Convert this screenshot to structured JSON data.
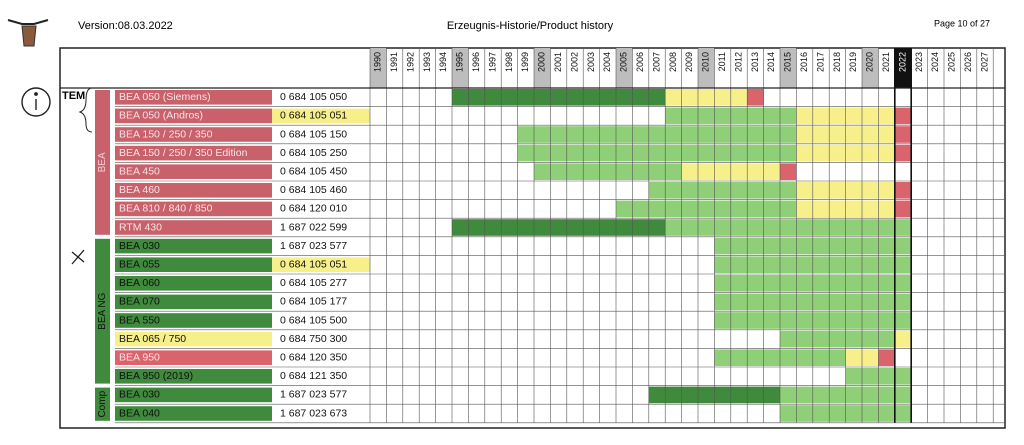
{
  "header": {
    "version": "Version:08.03.2022",
    "title": "Erzeugnis-Historie/Product history",
    "page": "Page 10 of 27"
  },
  "annotation": {
    "tem": "TEM"
  },
  "years": [
    1990,
    1991,
    1992,
    1993,
    1994,
    1995,
    1996,
    1997,
    1998,
    1999,
    2000,
    2001,
    2002,
    2003,
    2004,
    2005,
    2006,
    2007,
    2008,
    2009,
    2010,
    2011,
    2012,
    2013,
    2014,
    2015,
    2016,
    2017,
    2018,
    2019,
    2020,
    2021,
    2022,
    2023,
    2024,
    2025,
    2026,
    2027
  ],
  "emphasized_years": [
    1990,
    1995,
    2000,
    2005,
    2010,
    2015,
    2020
  ],
  "current_year": 2022,
  "status_colors": {
    "dark": "#3f8a3c",
    "green": "#8fcf78",
    "yellow": "#f7ef8a",
    "red": "#d9646c"
  },
  "groups": [
    {
      "name": "BEA",
      "color": "#c9616a",
      "rows": [
        {
          "label": "BEA 050 (Siemens)",
          "label_color": "#c9616a",
          "number": "0 684 105 050",
          "number_highlight": false,
          "segments": [
            {
              "from": 1995,
              "to": 2007,
              "status": "dark"
            },
            {
              "from": 2008,
              "to": 2012,
              "status": "yellow"
            },
            {
              "from": 2013,
              "to": 2013,
              "status": "red"
            }
          ]
        },
        {
          "label": "BEA 050 (Andros)",
          "label_color": "#c9616a",
          "number": "0 684 105 051",
          "number_highlight": true,
          "segments": [
            {
              "from": 2008,
              "to": 2015,
              "status": "green"
            },
            {
              "from": 2016,
              "to": 2021,
              "status": "yellow"
            },
            {
              "from": 2022,
              "to": 2022,
              "status": "red"
            }
          ]
        },
        {
          "label": "BEA 150 / 250 / 350",
          "label_color": "#c9616a",
          "number": "0 684 105 150",
          "number_highlight": false,
          "segments": [
            {
              "from": 1999,
              "to": 2015,
              "status": "green"
            },
            {
              "from": 2016,
              "to": 2021,
              "status": "yellow"
            },
            {
              "from": 2022,
              "to": 2022,
              "status": "red"
            }
          ]
        },
        {
          "label": "BEA 150 / 250 / 350 Edition",
          "label_color": "#c9616a",
          "number": "0 684 105 250",
          "number_highlight": false,
          "segments": [
            {
              "from": 1999,
              "to": 2015,
              "status": "green"
            },
            {
              "from": 2016,
              "to": 2021,
              "status": "yellow"
            },
            {
              "from": 2022,
              "to": 2022,
              "status": "red"
            }
          ]
        },
        {
          "label": "BEA 450",
          "label_color": "#c9616a",
          "number": "0 684 105 450",
          "number_highlight": false,
          "segments": [
            {
              "from": 2000,
              "to": 2008,
              "status": "green"
            },
            {
              "from": 2009,
              "to": 2014,
              "status": "yellow"
            },
            {
              "from": 2015,
              "to": 2015,
              "status": "red"
            }
          ]
        },
        {
          "label": "BEA 460",
          "label_color": "#c9616a",
          "number": "0 684 105 460",
          "number_highlight": false,
          "segments": [
            {
              "from": 2007,
              "to": 2015,
              "status": "green"
            },
            {
              "from": 2016,
              "to": 2021,
              "status": "yellow"
            },
            {
              "from": 2022,
              "to": 2022,
              "status": "red"
            }
          ]
        },
        {
          "label": "BEA 810 / 840 / 850",
          "label_color": "#c9616a",
          "number": "0 684 120 010",
          "number_highlight": false,
          "segments": [
            {
              "from": 2005,
              "to": 2015,
              "status": "green"
            },
            {
              "from": 2016,
              "to": 2021,
              "status": "yellow"
            },
            {
              "from": 2022,
              "to": 2022,
              "status": "red"
            }
          ]
        },
        {
          "label": "RTM 430",
          "label_color": "#c9616a",
          "number": "1 687 022 599",
          "number_highlight": false,
          "segments": [
            {
              "from": 1995,
              "to": 2007,
              "status": "dark"
            },
            {
              "from": 2008,
              "to": 2022,
              "status": "green"
            }
          ]
        }
      ]
    },
    {
      "name": "BEA NG",
      "color": "#3f8a3c",
      "rows": [
        {
          "label": "BEA 030",
          "label_color": "#3f8a3c",
          "number": "1 687 023 577",
          "number_highlight": false,
          "segments": [
            {
              "from": 2011,
              "to": 2022,
              "status": "green"
            }
          ]
        },
        {
          "label": "BEA 055",
          "label_color": "#3f8a3c",
          "number": "0 684 105 051",
          "number_highlight": true,
          "segments": [
            {
              "from": 2011,
              "to": 2022,
              "status": "green"
            }
          ]
        },
        {
          "label": "BEA 060",
          "label_color": "#3f8a3c",
          "number": "0 684 105 277",
          "number_highlight": false,
          "segments": [
            {
              "from": 2011,
              "to": 2022,
              "status": "green"
            }
          ]
        },
        {
          "label": "BEA 070",
          "label_color": "#3f8a3c",
          "number": "0 684 105 177",
          "number_highlight": false,
          "segments": [
            {
              "from": 2011,
              "to": 2022,
              "status": "green"
            }
          ]
        },
        {
          "label": "BEA 550",
          "label_color": "#3f8a3c",
          "number": "0 684 105 500",
          "number_highlight": false,
          "segments": [
            {
              "from": 2011,
              "to": 2022,
              "status": "green"
            }
          ]
        },
        {
          "label": "BEA 065 / 750",
          "label_color": "#f7ef8a",
          "number": "0 684 750 300",
          "number_highlight": false,
          "segments": [
            {
              "from": 2015,
              "to": 2021,
              "status": "green"
            },
            {
              "from": 2022,
              "to": 2022,
              "status": "yellow"
            }
          ]
        },
        {
          "label": "BEA 950",
          "label_color": "#d9646c",
          "number": "0 684 120 350",
          "number_highlight": false,
          "segments": [
            {
              "from": 2011,
              "to": 2018,
              "status": "green"
            },
            {
              "from": 2019,
              "to": 2020,
              "status": "yellow"
            },
            {
              "from": 2021,
              "to": 2021,
              "status": "red"
            }
          ]
        },
        {
          "label": "BEA 950 (2019)",
          "label_color": "#3f8a3c",
          "number": "0 684 121 350",
          "number_highlight": false,
          "segments": [
            {
              "from": 2019,
              "to": 2022,
              "status": "green"
            }
          ]
        }
      ]
    },
    {
      "name": "Comp",
      "color": "#3f8a3c",
      "rows": [
        {
          "label": "BEA 030",
          "label_color": "#3f8a3c",
          "number": "1 687 023 577",
          "number_highlight": false,
          "segments": [
            {
              "from": 2007,
              "to": 2014,
              "status": "dark"
            },
            {
              "from": 2015,
              "to": 2022,
              "status": "green"
            }
          ]
        },
        {
          "label": "BEA 040",
          "label_color": "#3f8a3c",
          "number": "1 687 023 673",
          "number_highlight": false,
          "segments": [
            {
              "from": 2015,
              "to": 2022,
              "status": "green"
            }
          ]
        }
      ]
    }
  ]
}
